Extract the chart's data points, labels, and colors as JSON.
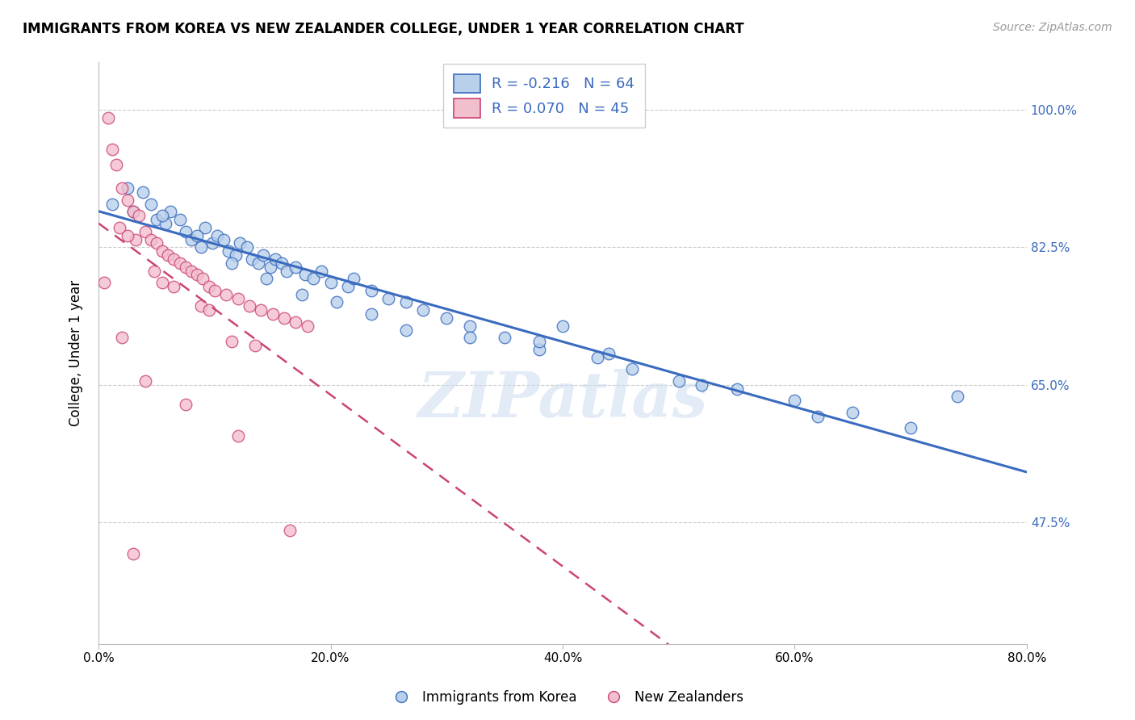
{
  "title": "IMMIGRANTS FROM KOREA VS NEW ZEALANDER COLLEGE, UNDER 1 YEAR CORRELATION CHART",
  "source": "Source: ZipAtlas.com",
  "ylabel": "College, Under 1 year",
  "legend_labels": [
    "Immigrants from Korea",
    "New Zealanders"
  ],
  "legend_r": [
    -0.216,
    0.07
  ],
  "legend_n": [
    64,
    45
  ],
  "blue_color": "#b8d0ea",
  "pink_color": "#f2bfcc",
  "blue_line_color": "#3a6bbf",
  "pink_line_color": "#cc4477",
  "watermark": "ZIPatlas",
  "yticks": [
    47.5,
    65.0,
    82.5,
    100.0
  ],
  "ylim_low": 32,
  "ylim_high": 106,
  "xlim_low": 0,
  "xlim_high": 80,
  "blue_x": [
    1.2,
    2.5,
    3.0,
    3.8,
    4.5,
    5.0,
    5.8,
    6.2,
    7.0,
    7.5,
    8.0,
    8.8,
    9.2,
    9.8,
    10.2,
    10.8,
    11.2,
    11.8,
    12.2,
    12.8,
    13.2,
    13.8,
    14.2,
    14.8,
    15.2,
    15.8,
    16.2,
    17.0,
    17.8,
    18.5,
    19.2,
    20.0,
    21.5,
    22.0,
    23.5,
    25.0,
    26.5,
    28.0,
    30.0,
    32.0,
    35.0,
    38.0,
    40.0,
    43.0,
    46.0,
    50.0,
    55.0,
    60.0,
    65.0,
    70.0,
    5.5,
    8.5,
    11.5,
    14.5,
    17.5,
    20.5,
    23.5,
    26.5,
    32.0,
    38.0,
    44.0,
    52.0,
    62.0,
    74.0
  ],
  "blue_y": [
    88.0,
    90.0,
    87.0,
    89.5,
    88.0,
    86.0,
    85.5,
    87.0,
    86.0,
    84.5,
    83.5,
    82.5,
    85.0,
    83.0,
    84.0,
    83.5,
    82.0,
    81.5,
    83.0,
    82.5,
    81.0,
    80.5,
    81.5,
    80.0,
    81.0,
    80.5,
    79.5,
    80.0,
    79.0,
    78.5,
    79.5,
    78.0,
    77.5,
    78.5,
    77.0,
    76.0,
    75.5,
    74.5,
    73.5,
    72.5,
    71.0,
    69.5,
    72.5,
    68.5,
    67.0,
    65.5,
    64.5,
    63.0,
    61.5,
    59.5,
    86.5,
    84.0,
    80.5,
    78.5,
    76.5,
    75.5,
    74.0,
    72.0,
    71.0,
    70.5,
    69.0,
    65.0,
    61.0,
    63.5
  ],
  "pink_x": [
    0.8,
    1.2,
    1.5,
    2.0,
    2.5,
    3.0,
    3.5,
    4.0,
    4.5,
    5.0,
    5.5,
    6.0,
    6.5,
    7.0,
    7.5,
    8.0,
    8.5,
    9.0,
    9.5,
    10.0,
    11.0,
    12.0,
    13.0,
    14.0,
    15.0,
    16.0,
    17.0,
    18.0,
    1.8,
    3.2,
    4.8,
    6.5,
    8.8,
    11.5,
    2.5,
    5.5,
    9.5,
    13.5,
    0.5,
    2.0,
    4.0,
    7.5,
    12.0,
    16.5,
    3.0
  ],
  "pink_y": [
    99.0,
    95.0,
    93.0,
    90.0,
    88.5,
    87.0,
    86.5,
    84.5,
    83.5,
    83.0,
    82.0,
    81.5,
    81.0,
    80.5,
    80.0,
    79.5,
    79.0,
    78.5,
    77.5,
    77.0,
    76.5,
    76.0,
    75.0,
    74.5,
    74.0,
    73.5,
    73.0,
    72.5,
    85.0,
    83.5,
    79.5,
    77.5,
    75.0,
    70.5,
    84.0,
    78.0,
    74.5,
    70.0,
    78.0,
    71.0,
    65.5,
    62.5,
    58.5,
    46.5,
    43.5
  ]
}
